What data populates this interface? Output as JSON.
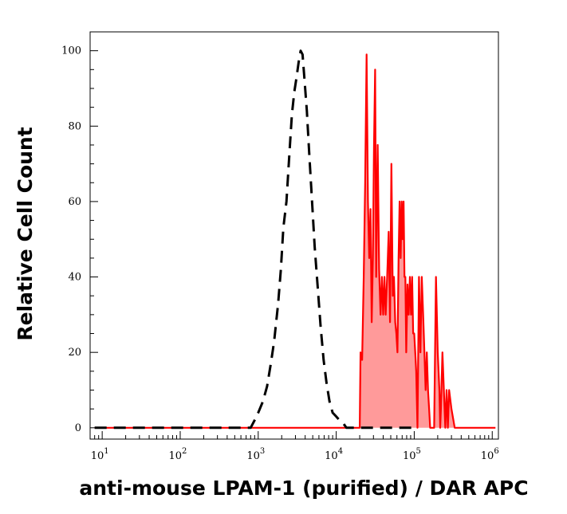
{
  "chart_data": {
    "type": "area",
    "xlabel": "anti-mouse LPAM-1 (purified) / DAR APC",
    "ylabel": "Relative Cell Count",
    "x_scale": "log",
    "xlim": [
      7,
      1200000
    ],
    "ylim": [
      -3,
      105
    ],
    "x_ticks": [
      {
        "base": "10",
        "exp": "1",
        "value": 10
      },
      {
        "base": "10",
        "exp": "2",
        "value": 100
      },
      {
        "base": "10",
        "exp": "3",
        "value": 1000
      },
      {
        "base": "10",
        "exp": "4",
        "value": 10000
      },
      {
        "base": "10",
        "exp": "5",
        "value": 100000
      },
      {
        "base": "10",
        "exp": "6",
        "value": 1000000
      }
    ],
    "y_ticks": [
      0,
      20,
      40,
      60,
      80,
      100
    ],
    "grid": false,
    "series": [
      {
        "style": "dashed",
        "color": "#000000",
        "fill": "none",
        "points": [
          [
            8,
            0
          ],
          [
            60,
            0
          ],
          [
            300,
            0
          ],
          [
            800,
            0
          ],
          [
            900,
            2
          ],
          [
            1000,
            4
          ],
          [
            1150,
            7
          ],
          [
            1300,
            11
          ],
          [
            1450,
            17
          ],
          [
            1600,
            23
          ],
          [
            1800,
            33
          ],
          [
            1950,
            42
          ],
          [
            2100,
            53
          ],
          [
            2300,
            60
          ],
          [
            2500,
            72
          ],
          [
            2700,
            83
          ],
          [
            2900,
            89
          ],
          [
            3100,
            93
          ],
          [
            3300,
            97
          ],
          [
            3500,
            100
          ],
          [
            3700,
            99
          ],
          [
            3900,
            93
          ],
          [
            4200,
            84
          ],
          [
            4500,
            73
          ],
          [
            4900,
            60
          ],
          [
            5300,
            48
          ],
          [
            5800,
            37
          ],
          [
            6300,
            27
          ],
          [
            6900,
            18
          ],
          [
            7500,
            12
          ],
          [
            8200,
            7
          ],
          [
            9000,
            4
          ],
          [
            10000,
            3
          ],
          [
            11000,
            2
          ],
          [
            12500,
            1
          ],
          [
            13500,
            0
          ],
          [
            100000,
            0
          ]
        ]
      },
      {
        "style": "solid",
        "color": "#ff0000",
        "fill": "#ff9a9a",
        "points": [
          [
            8,
            0
          ],
          [
            1000,
            0
          ],
          [
            10000,
            0
          ],
          [
            15000,
            0
          ],
          [
            19000,
            0
          ],
          [
            20000,
            0
          ],
          [
            20500,
            20
          ],
          [
            21500,
            18
          ],
          [
            22500,
            40
          ],
          [
            23500,
            65
          ],
          [
            24500,
            99
          ],
          [
            25500,
            60
          ],
          [
            26500,
            45
          ],
          [
            27500,
            58
          ],
          [
            28500,
            28
          ],
          [
            29500,
            45
          ],
          [
            30500,
            75
          ],
          [
            31500,
            95
          ],
          [
            32500,
            40
          ],
          [
            34000,
            75
          ],
          [
            35500,
            42
          ],
          [
            37000,
            30
          ],
          [
            38500,
            40
          ],
          [
            40000,
            30
          ],
          [
            41500,
            40
          ],
          [
            43000,
            30
          ],
          [
            45000,
            40
          ],
          [
            47000,
            52
          ],
          [
            49000,
            28
          ],
          [
            51000,
            70
          ],
          [
            53000,
            35
          ],
          [
            55000,
            40
          ],
          [
            57000,
            28
          ],
          [
            59000,
            25
          ],
          [
            61000,
            20
          ],
          [
            63000,
            45
          ],
          [
            65000,
            60
          ],
          [
            67000,
            45
          ],
          [
            69000,
            60
          ],
          [
            71000,
            50
          ],
          [
            73000,
            60
          ],
          [
            75000,
            40
          ],
          [
            77000,
            40
          ],
          [
            79000,
            20
          ],
          [
            82000,
            38
          ],
          [
            85000,
            30
          ],
          [
            88000,
            40
          ],
          [
            91000,
            30
          ],
          [
            94000,
            40
          ],
          [
            97000,
            25
          ],
          [
            100000,
            25
          ],
          [
            103000,
            20
          ],
          [
            106000,
            15
          ],
          [
            110000,
            0
          ],
          [
            115000,
            40
          ],
          [
            120000,
            20
          ],
          [
            125000,
            40
          ],
          [
            130000,
            30
          ],
          [
            135000,
            20
          ],
          [
            140000,
            10
          ],
          [
            145000,
            20
          ],
          [
            150000,
            10
          ],
          [
            155000,
            5
          ],
          [
            160000,
            0
          ],
          [
            170000,
            0
          ],
          [
            180000,
            0
          ],
          [
            190000,
            40
          ],
          [
            200000,
            20
          ],
          [
            210000,
            10
          ],
          [
            215000,
            0
          ],
          [
            220000,
            5
          ],
          [
            230000,
            20
          ],
          [
            240000,
            10
          ],
          [
            250000,
            0
          ],
          [
            260000,
            10
          ],
          [
            270000,
            0
          ],
          [
            280000,
            10
          ],
          [
            300000,
            5
          ],
          [
            330000,
            0
          ],
          [
            1100000,
            0
          ]
        ]
      }
    ]
  }
}
